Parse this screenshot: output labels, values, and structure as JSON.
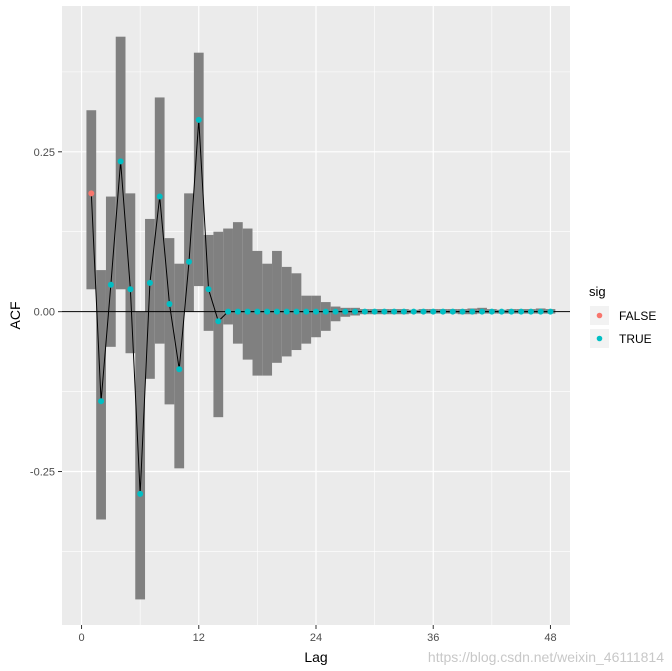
{
  "chart_data": {
    "type": "line",
    "title": "",
    "xlabel": "Lag",
    "ylabel": "ACF",
    "xlim": [
      -2,
      50
    ],
    "ylim": [
      -0.49,
      0.478
    ],
    "x_ticks": [
      0,
      12,
      24,
      36,
      48
    ],
    "x_tick_labels": [
      "0",
      "12",
      "24",
      "36",
      "48"
    ],
    "y_ticks": [
      -0.25,
      0.0,
      0.25
    ],
    "y_tick_labels": [
      "-0.25",
      "0.00",
      "0.25"
    ],
    "grid": true,
    "zero_line": 0,
    "legend": {
      "title": "sig",
      "position": "right",
      "entries": [
        {
          "label": "FALSE",
          "color": "#F8766D"
        },
        {
          "label": "TRUE",
          "color": "#00BFC4"
        }
      ]
    },
    "series": [
      {
        "name": "ACF",
        "line_color": "#000000",
        "x": [
          1,
          2,
          3,
          4,
          5,
          6,
          7,
          8,
          9,
          10,
          11,
          12,
          13,
          14,
          15,
          16,
          17,
          18,
          19,
          20,
          21,
          22,
          23,
          24,
          25,
          26,
          27,
          28,
          29,
          30,
          31,
          32,
          33,
          34,
          35,
          36,
          37,
          38,
          39,
          40,
          41,
          42,
          43,
          44,
          45,
          46,
          47,
          48
        ],
        "y": [
          0.185,
          -0.14,
          0.042,
          0.235,
          0.035,
          -0.285,
          0.045,
          0.18,
          0.012,
          -0.09,
          0.078,
          0.3,
          0.035,
          -0.015,
          0.0,
          0.0,
          0.0,
          0.0,
          0.0,
          0.0,
          0.0,
          0.0,
          0.0,
          0.0,
          0.0,
          0.0,
          0.0,
          0.0,
          0.0,
          0.0,
          0.0,
          0.0,
          0.0,
          0.0,
          0.0,
          0.0,
          0.0,
          0.0,
          0.0,
          0.0,
          0.0,
          0.0,
          0.0,
          0.0,
          0.0,
          0.0,
          0.0,
          0.0
        ],
        "sig": [
          false,
          true,
          true,
          true,
          true,
          true,
          true,
          true,
          true,
          true,
          true,
          true,
          true,
          true,
          true,
          true,
          true,
          true,
          true,
          true,
          true,
          true,
          true,
          true,
          true,
          true,
          true,
          true,
          true,
          true,
          true,
          true,
          true,
          true,
          true,
          true,
          true,
          true,
          true,
          true,
          true,
          true,
          true,
          true,
          true,
          true,
          true,
          true
        ]
      }
    ],
    "intervals": {
      "name": "interval",
      "color": "#808080",
      "x": [
        1,
        2,
        3,
        4,
        5,
        6,
        7,
        8,
        9,
        10,
        11,
        12,
        13,
        14,
        15,
        16,
        17,
        18,
        19,
        20,
        21,
        22,
        23,
        24,
        25,
        26,
        27,
        28,
        29,
        30,
        31,
        32,
        33,
        34,
        35,
        36,
        37,
        38,
        39,
        40,
        41,
        42,
        43,
        44,
        45,
        46,
        47,
        48
      ],
      "lower": [
        0.035,
        -0.325,
        -0.055,
        0.035,
        -0.065,
        -0.45,
        -0.105,
        -0.05,
        -0.145,
        -0.245,
        0.0,
        0.04,
        -0.03,
        -0.165,
        -0.02,
        -0.05,
        -0.075,
        -0.1,
        -0.1,
        -0.08,
        -0.07,
        -0.06,
        -0.05,
        -0.04,
        -0.03,
        -0.015,
        -0.008,
        -0.006,
        -0.004,
        -0.004,
        -0.004,
        -0.004,
        -0.004,
        -0.003,
        -0.003,
        -0.003,
        -0.003,
        -0.003,
        -0.004,
        -0.004,
        -0.003,
        -0.003,
        -0.003,
        -0.003,
        -0.003,
        -0.003,
        -0.003,
        -0.003
      ],
      "upper": [
        0.315,
        0.065,
        0.18,
        0.43,
        0.185,
        0.0,
        0.145,
        0.335,
        0.115,
        0.075,
        0.185,
        0.405,
        0.12,
        0.125,
        0.13,
        0.14,
        0.13,
        0.095,
        0.075,
        0.095,
        0.07,
        0.06,
        0.025,
        0.025,
        0.015,
        0.008,
        0.006,
        0.006,
        0.004,
        0.004,
        0.004,
        0.004,
        0.004,
        0.003,
        0.004,
        0.004,
        0.004,
        0.004,
        0.004,
        0.005,
        0.006,
        0.004,
        0.003,
        0.004,
        0.004,
        0.004,
        0.005,
        0.004
      ]
    }
  },
  "watermark": "https://blog.csdn.net/weixin_46111814"
}
